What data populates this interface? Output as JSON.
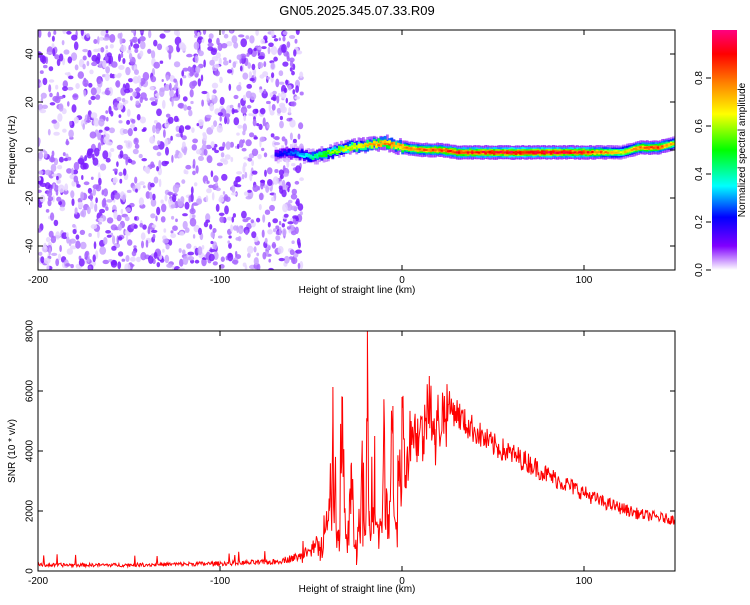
{
  "title": "GN05.2025.345.07.33.R09",
  "chart_data": [
    {
      "type": "heatmap",
      "xlabel": "Height of straight line (km)",
      "ylabel": "Frequency (Hz)",
      "xlim": [
        -200,
        150
      ],
      "ylim": [
        -50,
        50
      ],
      "x_ticks": [
        -200,
        -100,
        0,
        100
      ],
      "y_ticks": [
        -40,
        -20,
        0,
        20,
        40
      ],
      "colorbar": {
        "label": "Normalized spectral amplitude",
        "range": [
          0,
          1
        ],
        "ticks": [
          0.0,
          0.2,
          0.4,
          0.6,
          0.8
        ],
        "colors": [
          "#ffffff",
          "#8000ff",
          "#0000ff",
          "#00ffff",
          "#00ff00",
          "#ffff00",
          "#ff8000",
          "#ff0000",
          "#ff0080"
        ]
      },
      "noise_region_x": [
        -200,
        -55
      ],
      "ridge": {
        "x": [
          -70,
          -60,
          -50,
          -40,
          -30,
          -20,
          -10,
          0,
          10,
          20,
          30,
          40,
          60,
          80,
          100,
          120,
          130,
          140,
          150
        ],
        "frequency": [
          -2,
          -1,
          -3,
          -1,
          1,
          2,
          3,
          1,
          0,
          0,
          -1,
          -1,
          -1,
          -1,
          -1,
          -1,
          1,
          1,
          3
        ],
        "amplitude": [
          0.2,
          0.3,
          0.45,
          0.6,
          0.7,
          0.75,
          0.85,
          0.8,
          0.85,
          0.9,
          0.95,
          0.95,
          1.0,
          1.0,
          0.95,
          0.7,
          0.85,
          0.9,
          0.7
        ]
      },
      "grid": false
    },
    {
      "type": "line",
      "xlabel": "Height of straight line (km)",
      "ylabel": "SNR (10 * v/v)",
      "xlim": [
        -200,
        150
      ],
      "ylim": [
        0,
        8000
      ],
      "x_ticks": [
        -200,
        -100,
        0,
        100
      ],
      "y_ticks": [
        0,
        2000,
        4000,
        6000,
        8000
      ],
      "color": "#ff0000",
      "series": [
        {
          "x": [
            -200,
            -150,
            -100,
            -70,
            -55,
            -45,
            -40,
            -38,
            -35,
            -33,
            -30,
            -28,
            -25,
            -22,
            -20,
            -19,
            -18,
            -15,
            -12,
            -10,
            -8,
            -5,
            -2,
            0,
            2,
            5,
            8,
            10,
            12,
            15,
            18,
            20,
            25,
            30,
            35,
            40,
            45,
            50,
            60,
            70,
            80,
            90,
            100,
            110,
            120,
            130,
            140,
            150
          ],
          "y": [
            200,
            200,
            250,
            300,
            500,
            800,
            2000,
            5000,
            1000,
            5800,
            600,
            3500,
            200,
            4000,
            1200,
            8000,
            2000,
            4500,
            1500,
            5000,
            2000,
            5500,
            3000,
            5800,
            3200,
            5000,
            4600,
            4800,
            4500,
            6500,
            4200,
            5200,
            5500,
            5300,
            4900,
            4700,
            4400,
            4200,
            3900,
            3600,
            3200,
            2900,
            2600,
            2300,
            2100,
            1900,
            1800,
            1700
          ]
        }
      ],
      "grid": false
    }
  ]
}
